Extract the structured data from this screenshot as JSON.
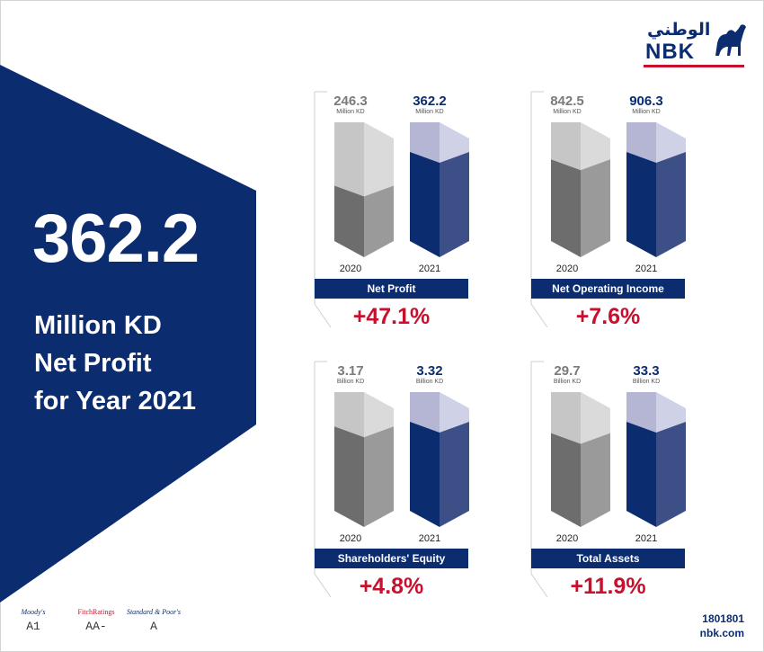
{
  "brand": {
    "arabic": "الوطني",
    "latin": "NBK",
    "colors": {
      "navy": "#0b2d70",
      "red": "#c8102e"
    }
  },
  "hero": {
    "value": "362.2",
    "line1": "Million KD",
    "line2": "Net Profit",
    "line3": "for Year 2021"
  },
  "chart_data": [
    {
      "type": "bar",
      "title": "Net Profit",
      "categories": [
        "2020",
        "2021"
      ],
      "values": [
        246.3,
        362.2
      ],
      "labels": [
        "246.3",
        "362.2"
      ],
      "unit": "Million KD",
      "change": "+47.1%"
    },
    {
      "type": "bar",
      "title": "Net Operating Income",
      "categories": [
        "2020",
        "2021"
      ],
      "values": [
        842.5,
        906.3
      ],
      "labels": [
        "842.5",
        "906.3"
      ],
      "unit": "Million KD",
      "change": "+7.6%"
    },
    {
      "type": "bar",
      "title": "Shareholders' Equity",
      "categories": [
        "2020",
        "2021"
      ],
      "values": [
        3.17,
        3.32
      ],
      "labels": [
        "3.17",
        "3.32"
      ],
      "unit": "Billion KD",
      "change": "+4.8%"
    },
    {
      "type": "bar",
      "title": "Total Assets",
      "categories": [
        "2020",
        "2021"
      ],
      "values": [
        29.7,
        33.3
      ],
      "labels": [
        "29.7",
        "33.3"
      ],
      "unit": "Billion KD",
      "change": "+11.9%"
    }
  ],
  "ratings": [
    {
      "agency": "Moody's",
      "grade": "A1"
    },
    {
      "agency": "FitchRatings",
      "grade": "AA-"
    },
    {
      "agency": "Standard & Poor's",
      "grade": "A"
    }
  ],
  "contact": {
    "phone": "1801801",
    "website": "nbk.com"
  }
}
